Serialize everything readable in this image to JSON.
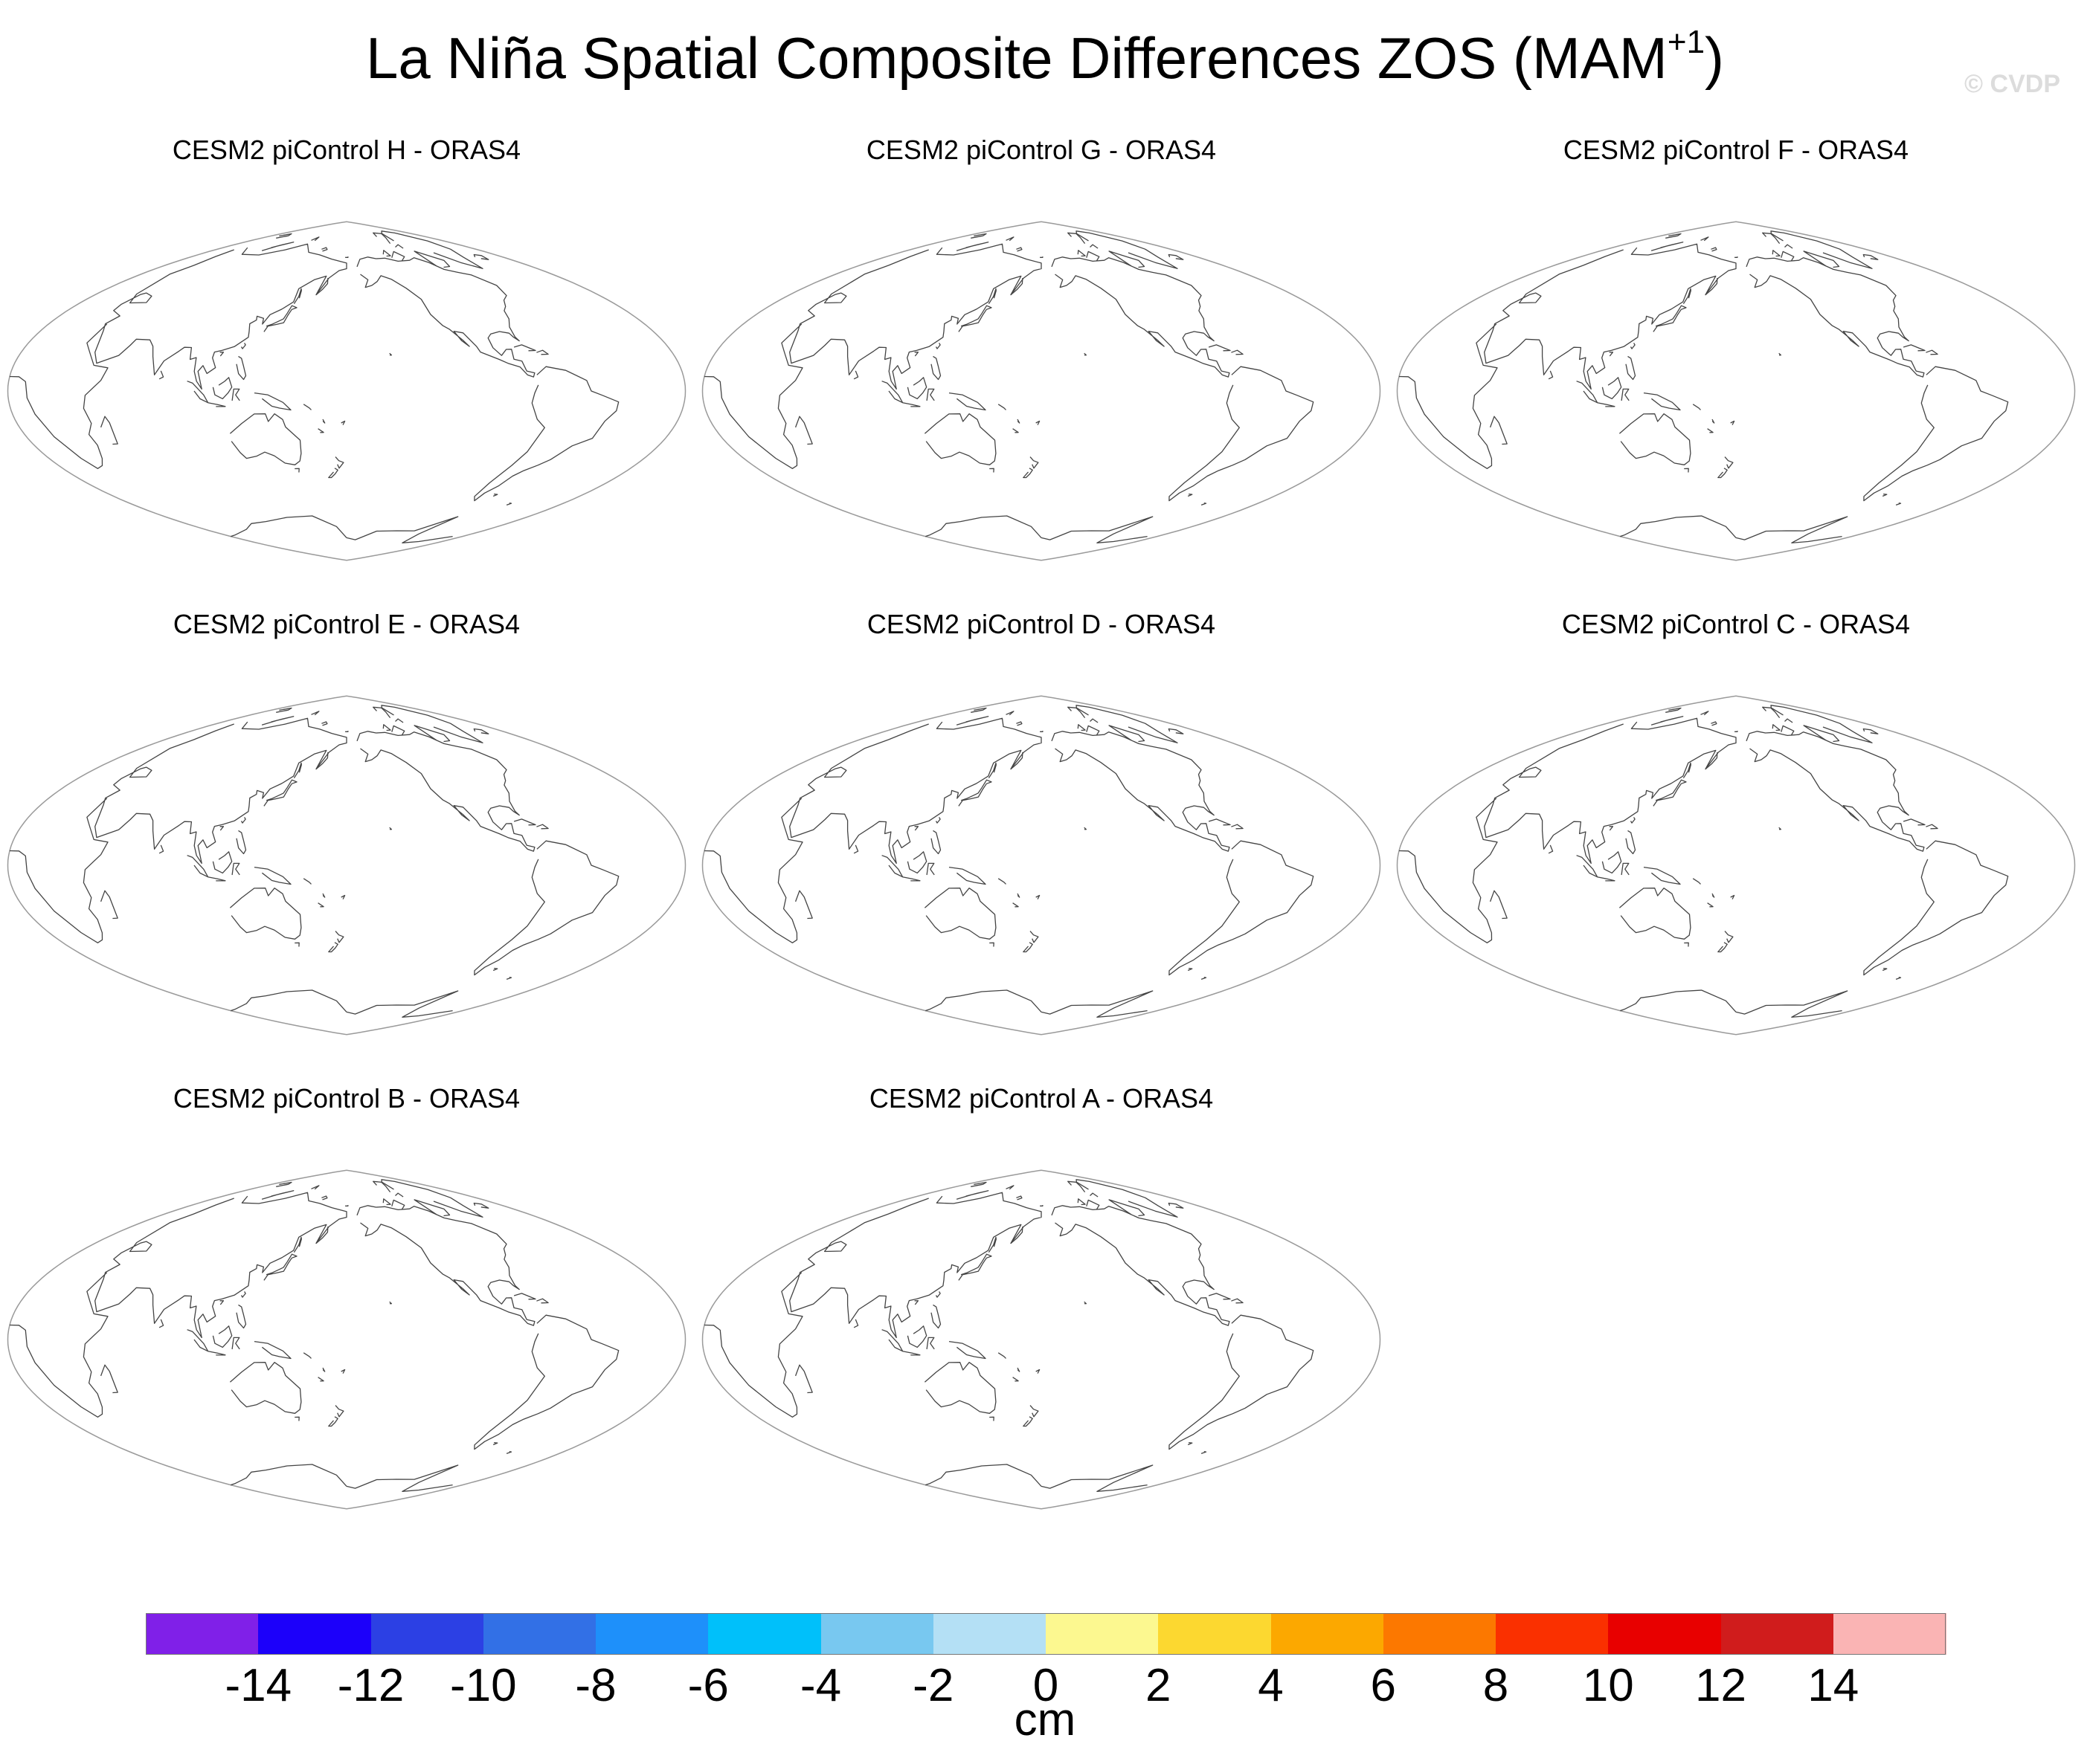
{
  "figure": {
    "title": "La Niña Spatial Composite Differences ZOS (MAM",
    "title_superscript": "+1",
    "title_suffix": ")",
    "watermark": "© CVDP"
  },
  "panels": [
    {
      "title": "CESM2 piControl H - ORAS4"
    },
    {
      "title": "CESM2 piControl G - ORAS4"
    },
    {
      "title": "CESM2 piControl F - ORAS4"
    },
    {
      "title": "CESM2 piControl E - ORAS4"
    },
    {
      "title": "CESM2 piControl D - ORAS4"
    },
    {
      "title": "CESM2 piControl C - ORAS4"
    },
    {
      "title": "CESM2 piControl B - ORAS4"
    },
    {
      "title": "CESM2 piControl A - ORAS4"
    }
  ],
  "colorbar": {
    "units": "cm",
    "labels": [
      "-14",
      "-12",
      "-10",
      "-8",
      "-6",
      "-4",
      "-2",
      "0",
      "2",
      "4",
      "6",
      "8",
      "10",
      "12",
      "14"
    ],
    "colors": [
      "#8020e8",
      "#1c00fa",
      "#2c40e4",
      "#3270e6",
      "#1e90fa",
      "#00c0fa",
      "#78c8f0",
      "#b4e0f5",
      "#fcf890",
      "#fcd830",
      "#fca800",
      "#fc7800",
      "#fa3000",
      "#e80000",
      "#d01c1c",
      "#fab4b4"
    ]
  }
}
